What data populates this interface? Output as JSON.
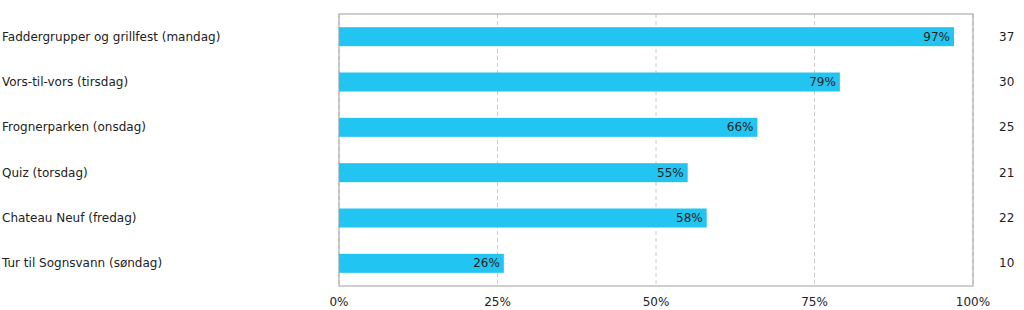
{
  "chart_data": {
    "type": "bar",
    "orientation": "horizontal",
    "categories": [
      "Faddergrupper og grillfest (mandag)",
      "Vors-til-vors (tirsdag)",
      "Frognerparken (onsdag)",
      "Quiz (torsdag)",
      "Chateau Neuf (fredag)",
      "Tur til Sognsvann (søndag)"
    ],
    "values": [
      97,
      79,
      66,
      55,
      58,
      26
    ],
    "value_labels": [
      "97%",
      "79%",
      "66%",
      "55%",
      "58%",
      "26%"
    ],
    "counts": [
      37,
      30,
      25,
      21,
      22,
      10
    ],
    "color": "#22c5f2",
    "xlim": [
      0,
      100
    ],
    "xticks": [
      {
        "value": 0,
        "label": "0%"
      },
      {
        "value": 25,
        "label": "25%"
      },
      {
        "value": 50,
        "label": "50%"
      },
      {
        "value": 75,
        "label": "75%"
      },
      {
        "value": 100,
        "label": "100%"
      }
    ],
    "grid": true,
    "data_labels": true
  }
}
